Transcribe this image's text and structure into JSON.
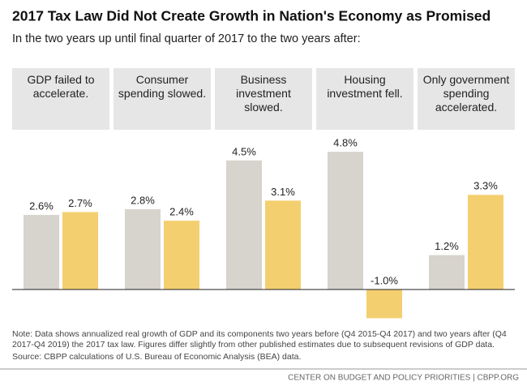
{
  "chart_data": {
    "type": "bar",
    "title": "2017 Tax Law Did Not Create Growth in Nation's Economy as Promised",
    "subtitle": "In the two years up until final quarter of 2017 to the two years after:",
    "categories": [
      "GDP failed to accelerate.",
      "Consumer spending slowed.",
      "Business investment slowed.",
      "Housing investment fell.",
      "Only government spending accelerated."
    ],
    "series": [
      {
        "color": "#d7d3cd",
        "values": [
          2.6,
          2.8,
          4.5,
          4.8,
          1.2
        ],
        "value_labels": [
          "2.6%",
          "2.8%",
          "4.5%",
          "4.8%",
          "1.2%"
        ]
      },
      {
        "color": "#f4cf6f",
        "values": [
          2.7,
          2.4,
          3.1,
          -1.0,
          3.3
        ],
        "value_labels": [
          "2.7%",
          "2.4%",
          "3.1%",
          "-1.0%",
          "3.3%"
        ]
      }
    ],
    "ylim": [
      -1.2,
      5.4
    ],
    "note": "Note: Data shows annualized real growth of GDP and its components two years before (Q4 2015-Q4 2017) and two years after (Q4 2017-Q4 2019) the 2017 tax law. Figures differ slightly from other published estimates due to subsequent revisions of GDP data.",
    "source": "Source: CBPP calculations of U.S. Bureau of Economic Analysis (BEA) data.",
    "footer": "CENTER ON BUDGET AND POLICY PRIORITIES | CBPP.ORG"
  }
}
